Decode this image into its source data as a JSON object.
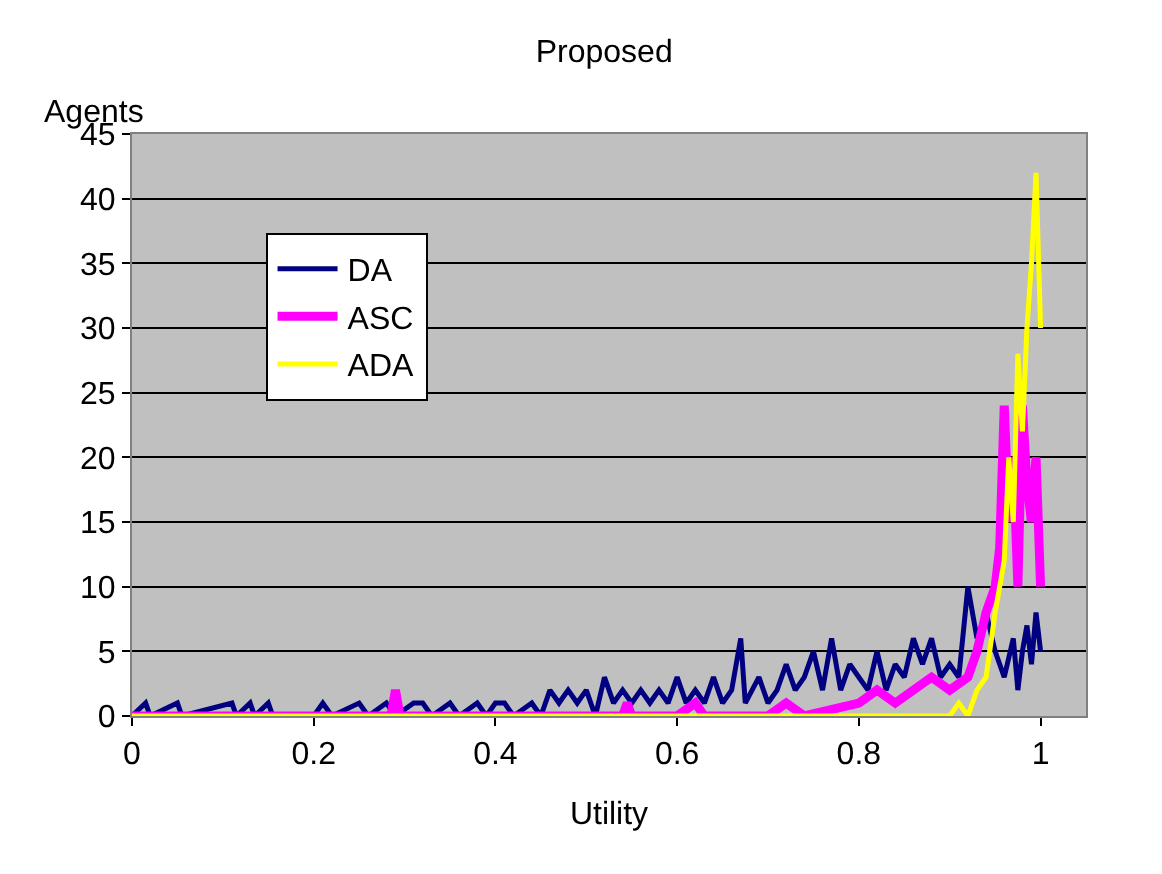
{
  "chart_data": {
    "type": "line",
    "title": "Proposed",
    "xlabel": "Utility",
    "ylabel": "Agents",
    "xlim": [
      0,
      1.05
    ],
    "xticks": [
      0,
      0.2,
      0.4,
      0.6,
      0.8,
      1
    ],
    "ylim": [
      0,
      45
    ],
    "yticks": [
      0,
      5,
      10,
      15,
      20,
      25,
      30,
      35,
      40,
      45
    ],
    "grid": "y",
    "legend": "top left",
    "marker": "none",
    "line_style": "solid",
    "series": [
      {
        "name": "DA",
        "color": "#000080",
        "x": [
          0,
          0.015,
          0.02,
          0.05,
          0.055,
          0.11,
          0.115,
          0.13,
          0.135,
          0.15,
          0.155,
          0.2,
          0.21,
          0.22,
          0.25,
          0.26,
          0.28,
          0.29,
          0.31,
          0.32,
          0.33,
          0.35,
          0.36,
          0.38,
          0.39,
          0.4,
          0.41,
          0.42,
          0.44,
          0.45,
          0.46,
          0.47,
          0.48,
          0.49,
          0.5,
          0.51,
          0.52,
          0.53,
          0.54,
          0.55,
          0.56,
          0.57,
          0.58,
          0.59,
          0.6,
          0.61,
          0.62,
          0.63,
          0.64,
          0.65,
          0.66,
          0.67,
          0.675,
          0.69,
          0.7,
          0.71,
          0.72,
          0.73,
          0.74,
          0.75,
          0.76,
          0.77,
          0.78,
          0.79,
          0.8,
          0.81,
          0.82,
          0.83,
          0.84,
          0.85,
          0.86,
          0.87,
          0.88,
          0.89,
          0.9,
          0.91,
          0.92,
          0.93,
          0.94,
          0.95,
          0.96,
          0.97,
          0.975,
          0.98,
          0.985,
          0.99,
          0.995,
          1.0
        ],
        "values": [
          0,
          1,
          0,
          1,
          0,
          1,
          0,
          1,
          0,
          1,
          0,
          0,
          1,
          0,
          1,
          0,
          1,
          0,
          1,
          1,
          0,
          1,
          0,
          1,
          0,
          1,
          1,
          0,
          1,
          0,
          2,
          1,
          2,
          1,
          2,
          0,
          3,
          1,
          2,
          1,
          2,
          1,
          2,
          1,
          3,
          1,
          2,
          1,
          3,
          1,
          2,
          6,
          1,
          3,
          1,
          2,
          4,
          2,
          3,
          5,
          2,
          6,
          2,
          4,
          3,
          2,
          5,
          2,
          4,
          3,
          6,
          4,
          6,
          3,
          4,
          3,
          10,
          6,
          8,
          5,
          3,
          6,
          2,
          5,
          7,
          4,
          8,
          5
        ]
      },
      {
        "name": "ASC",
        "color": "#ff00ff",
        "x": [
          0,
          0.285,
          0.29,
          0.295,
          0.54,
          0.545,
          0.55,
          0.6,
          0.62,
          0.63,
          0.7,
          0.72,
          0.74,
          0.8,
          0.82,
          0.84,
          0.86,
          0.88,
          0.9,
          0.92,
          0.93,
          0.94,
          0.95,
          0.955,
          0.96,
          0.965,
          0.97,
          0.975,
          0.98,
          0.985,
          0.99,
          0.995,
          1.0
        ],
        "values": [
          0,
          0,
          2,
          0,
          0,
          1,
          0,
          0,
          1,
          0,
          0,
          1,
          0,
          1,
          2,
          1,
          2,
          3,
          2,
          3,
          5,
          8,
          10,
          13,
          24,
          15,
          20,
          10,
          24,
          18,
          15,
          20,
          10
        ]
      },
      {
        "name": "ADA",
        "color": "#ffff00",
        "x": [
          0,
          0.9,
          0.91,
          0.92,
          0.93,
          0.94,
          0.95,
          0.96,
          0.965,
          0.97,
          0.975,
          0.98,
          0.985,
          0.99,
          0.995,
          1.0
        ],
        "values": [
          0,
          0,
          1,
          0,
          2,
          3,
          8,
          12,
          20,
          15,
          28,
          22,
          30,
          35,
          42,
          30
        ]
      }
    ]
  }
}
